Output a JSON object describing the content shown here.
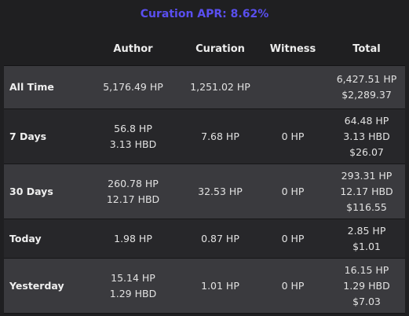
{
  "title": "Curation APR: 8.62%",
  "columns": [
    "",
    "Author",
    "Curation",
    "Witness",
    "Total"
  ],
  "rows": [
    {
      "label": "All Time",
      "author": [
        "5,176.49 HP"
      ],
      "curation": [
        "1,251.02 HP"
      ],
      "witness": [],
      "total": [
        "6,427.51 HP",
        "$2,289.37"
      ]
    },
    {
      "label": "7 Days",
      "author": [
        "56.8 HP",
        "3.13 HBD"
      ],
      "curation": [
        "7.68 HP"
      ],
      "witness": [
        "0 HP"
      ],
      "total": [
        "64.48 HP",
        "3.13 HBD",
        "$26.07"
      ]
    },
    {
      "label": "30 Days",
      "author": [
        "260.78 HP",
        "12.17 HBD"
      ],
      "curation": [
        "32.53 HP"
      ],
      "witness": [
        "0 HP"
      ],
      "total": [
        "293.31 HP",
        "12.17 HBD",
        "$116.55"
      ]
    },
    {
      "label": "Today",
      "author": [
        "1.98 HP"
      ],
      "curation": [
        "0.87 HP"
      ],
      "witness": [
        "0 HP"
      ],
      "total": [
        "2.85 HP",
        "$1.01"
      ]
    },
    {
      "label": "Yesterday",
      "author": [
        "15.14 HP",
        "1.29 HBD"
      ],
      "curation": [
        "1.01 HP"
      ],
      "witness": [
        "0 HP"
      ],
      "total": [
        "16.15 HP",
        "1.29 HBD",
        "$7.03"
      ]
    }
  ]
}
